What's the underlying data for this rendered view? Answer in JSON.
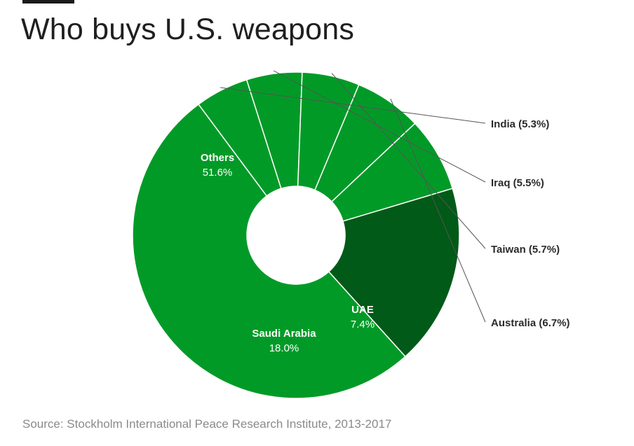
{
  "title": "Who buys U.S. weapons",
  "source": "Source: Stockholm International Peace Research Institute, 2013-2017",
  "colors": {
    "slice": "#029a27",
    "highlight": "#015a17",
    "border": "#ffffff",
    "leader": "#555555"
  },
  "chart_data": {
    "type": "pie",
    "title": "Who buys U.S. weapons",
    "categories": [
      "Others",
      "India",
      "Iraq",
      "Taiwan",
      "Australia",
      "UAE",
      "Saudi Arabia"
    ],
    "values": [
      51.6,
      5.3,
      5.5,
      5.7,
      6.7,
      7.4,
      18.0
    ],
    "unit": "%",
    "inside_labels": [
      {
        "name": "Others",
        "value": "51.6%"
      },
      {
        "name": "UAE",
        "value": "7.4%"
      },
      {
        "name": "Saudi Arabia",
        "value": "18.0%"
      }
    ],
    "callout_labels": [
      "India (5.3%)",
      "Iraq (5.5%)",
      "Taiwan (5.7%)",
      "Australia (6.7%)"
    ],
    "highlighted": "Saudi Arabia",
    "donut": true
  }
}
